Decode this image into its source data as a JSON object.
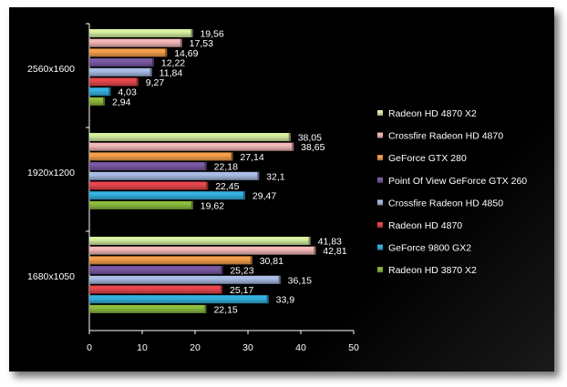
{
  "chart_data": {
    "type": "bar",
    "orientation": "horizontal",
    "categories": [
      "2560x1600",
      "1920x1200",
      "1680x1050"
    ],
    "series": [
      {
        "name": "Radeon HD 4870 X2",
        "color": "#d7f0a2",
        "values": [
          19.56,
          38.05,
          41.83
        ],
        "labels": [
          "19,56",
          "38,05",
          "41,83"
        ]
      },
      {
        "name": "Crossfire Radeon HD 4870",
        "color": "#f4b8b8",
        "values": [
          17.53,
          38.65,
          42.81
        ],
        "labels": [
          "17,53",
          "38,65",
          "42,81"
        ]
      },
      {
        "name": "GeForce GTX 280",
        "color": "#f6a04c",
        "values": [
          14.69,
          27.14,
          30.81
        ],
        "labels": [
          "14,69",
          "27,14",
          "30,81"
        ]
      },
      {
        "name": "Point Of View GeForce GTX 260",
        "color": "#7b5aa6",
        "values": [
          12.22,
          22.18,
          25.23
        ],
        "labels": [
          "12,22",
          "22,18",
          "25,23"
        ]
      },
      {
        "name": "Crossfire Radeon HD 4850",
        "color": "#a9bde6",
        "values": [
          11.84,
          32.1,
          36.15
        ],
        "labels": [
          "11,84",
          "32,1",
          "36,15"
        ]
      },
      {
        "name": "Radeon HD 4870",
        "color": "#e8484e",
        "values": [
          9.27,
          22.45,
          25.17
        ],
        "labels": [
          "9,27",
          "22,45",
          "25,17"
        ]
      },
      {
        "name": "GeForce 9800 GX2",
        "color": "#35b3e0",
        "values": [
          4.03,
          29.47,
          33.9
        ],
        "labels": [
          "4,03",
          "29,47",
          "33,9"
        ]
      },
      {
        "name": "Radeon HD 3870 X2",
        "color": "#8cbd3e",
        "values": [
          2.94,
          19.62,
          22.15
        ],
        "labels": [
          "2,94",
          "19,62",
          "22,15"
        ]
      }
    ],
    "xlim": [
      0,
      50
    ],
    "ticks": [
      "0",
      "10",
      "20",
      "30",
      "40",
      "50"
    ],
    "legend_position": "right",
    "grid": false
  }
}
